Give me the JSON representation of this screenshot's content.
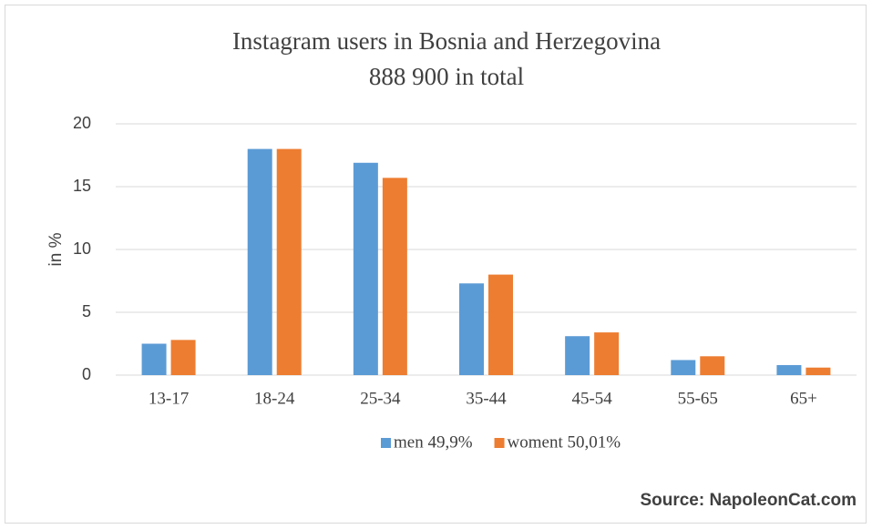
{
  "chart_data": {
    "type": "bar",
    "title": "Instagram users in Bosnia and Herzegovina",
    "subtitle": "888 900 in total",
    "y_label": "in %",
    "annotation": "Source: NapoleonCat.com",
    "categories": [
      "13-17",
      "18-24",
      "25-34",
      "35-44",
      "45-54",
      "55-65",
      "65+"
    ],
    "series": [
      {
        "name": "men 49,9%",
        "color": "#5b9bd5",
        "values": [
          2.5,
          18,
          16.9,
          7.3,
          3.1,
          1.2,
          0.8
        ]
      },
      {
        "name": "woment 50,01%",
        "color": "#ed7d31",
        "values": [
          2.8,
          18,
          15.7,
          8.0,
          3.4,
          1.5,
          0.6
        ]
      }
    ],
    "ylim": [
      0,
      20
    ],
    "yticks": [
      0,
      5,
      10,
      15,
      20
    ],
    "grid": true,
    "legend": "bottom"
  }
}
